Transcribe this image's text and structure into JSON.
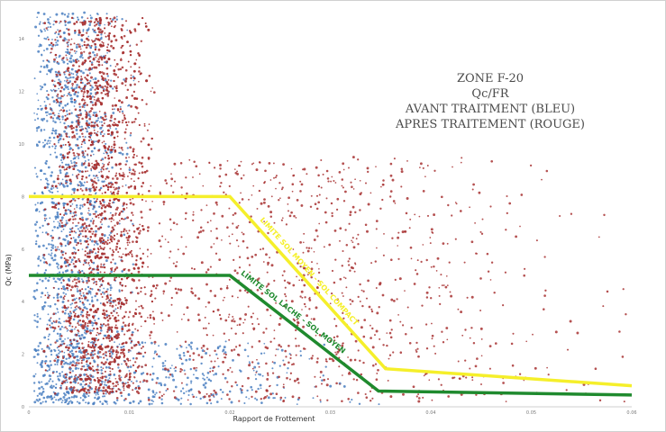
{
  "chart_data": {
    "type": "scatter",
    "title_lines": [
      "ZONE F-20",
      "Qc/FR",
      "AVANT TRAITMENT (BLEU)",
      "APRES TRAITEMENT (ROUGE)"
    ],
    "xlabel": "Rapport de Frottement",
    "ylabel": "Qc (MPa)",
    "xlim": [
      0,
      0.06
    ],
    "ylim": [
      0,
      15
    ],
    "x_ticks": [
      "0",
      "0.01",
      "0.02",
      "0.03",
      "0.04",
      "0.05",
      "0.06"
    ],
    "y_ticks": [
      "0",
      "2",
      "4",
      "6",
      "8",
      "10",
      "12",
      "14"
    ],
    "grid": false,
    "series": [
      {
        "color": "#4a7fc1",
        "marker": "dot"
      },
      {
        "color": "#a83232",
        "marker": "dot"
      }
    ],
    "boundary_lines": [
      {
        "label": "LIMITE SOL MOYEN - SOL COMPACT",
        "color": "#f5ef2a",
        "points": [
          [
            0,
            8.0
          ],
          [
            0.02,
            8.0
          ],
          [
            0.0355,
            1.45
          ],
          [
            0.06,
            0.8
          ]
        ]
      },
      {
        "label": "LIMITE SOL LACHE - SOL MOYEN",
        "color": "#1f8a2e",
        "points": [
          [
            0,
            5.0
          ],
          [
            0.02,
            5.0
          ],
          [
            0.0348,
            0.6
          ],
          [
            0.06,
            0.45
          ]
        ]
      }
    ],
    "point_clusters": [
      {
        "series": 0,
        "count": 1500,
        "x_range": [
          0.0005,
          0.0105
        ],
        "y_range": [
          0.1,
          15
        ],
        "x_center": 0.004,
        "x_spread": 0.0025
      },
      {
        "series": 0,
        "count": 350,
        "x_range": [
          0.0005,
          0.035
        ],
        "y_range": [
          0.1,
          2.5
        ],
        "x_center": 0.012,
        "x_spread": 0.008
      },
      {
        "series": 1,
        "count": 2500,
        "x_range": [
          0.0015,
          0.0125
        ],
        "y_range": [
          0.5,
          14.8
        ],
        "x_center": 0.007,
        "x_spread": 0.0025
      },
      {
        "series": 1,
        "count": 1100,
        "x_range": [
          0.008,
          0.06
        ],
        "y_range": [
          0.2,
          9.5
        ],
        "x_center": 0.025,
        "x_spread": 0.012
      }
    ]
  }
}
